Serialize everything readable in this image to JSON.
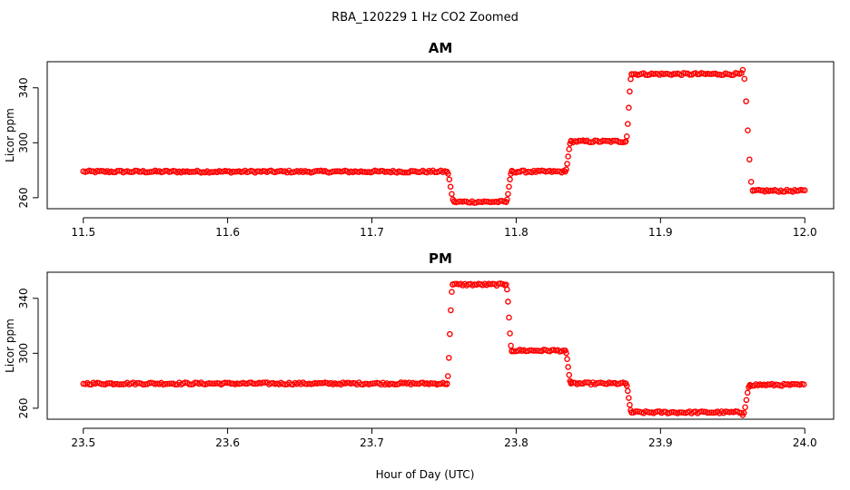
{
  "page": {
    "title": "RBA_120229  1 Hz CO2 Zoomed",
    "xlabel": "Hour of Day (UTC)"
  },
  "chart_data": [
    {
      "type": "scatter",
      "title": "AM",
      "xlabel": "Hour of Day (UTC)",
      "ylabel": "Licor ppm",
      "xlim": [
        11.475,
        12.02
      ],
      "ylim": [
        252,
        359
      ],
      "xticks": [
        11.5,
        11.6,
        11.7,
        11.8,
        11.9,
        12.0
      ],
      "xtick_labels": [
        "11.5",
        "11.6",
        "11.7",
        "11.8",
        "11.9",
        "12.0"
      ],
      "yticks": [
        260,
        300,
        340
      ],
      "ytick_labels": [
        "260",
        "300",
        "340"
      ],
      "marker_color": "#ff0000",
      "series": [
        {
          "segments": [
            {
              "x": [
                11.5,
                11.752
              ],
              "y": 279
            },
            {
              "x": [
                11.757,
                11.793
              ],
              "y": 257
            },
            {
              "x": [
                11.797,
                11.834
              ],
              "y": 279
            },
            {
              "x": [
                11.838,
                11.876
              ],
              "y": 301
            },
            {
              "x": [
                11.88,
                11.957
              ],
              "y": 350
            },
            {
              "x": [
                11.964,
                12.0
              ],
              "y": 265
            }
          ],
          "transitions": [
            {
              "x": [
                11.752,
                11.757
              ],
              "y": [
                279,
                257
              ]
            },
            {
              "x": [
                11.793,
                11.797
              ],
              "y": [
                257,
                279
              ]
            },
            {
              "x": [
                11.834,
                11.838
              ],
              "y": [
                279,
                301
              ]
            },
            {
              "x": [
                11.876,
                11.88
              ],
              "y": [
                301,
                350
              ]
            },
            {
              "x": [
                11.957,
                11.964
              ],
              "y": [
                353,
                265
              ]
            }
          ]
        }
      ]
    },
    {
      "type": "scatter",
      "title": "PM",
      "xlabel": "Hour of Day (UTC)",
      "ylabel": "Licor ppm",
      "xlim": [
        23.475,
        24.02
      ],
      "ylim": [
        252,
        359
      ],
      "xticks": [
        23.5,
        23.6,
        23.7,
        23.8,
        23.9,
        24.0
      ],
      "xtick_labels": [
        "23.5",
        "23.6",
        "23.7",
        "23.8",
        "23.9",
        "24.0"
      ],
      "yticks": [
        260,
        300,
        340
      ],
      "ytick_labels": [
        "260",
        "300",
        "340"
      ],
      "marker_color": "#ff0000",
      "series": [
        {
          "segments": [
            {
              "x": [
                23.5,
                23.752
              ],
              "y": 278
            },
            {
              "x": [
                23.756,
                23.793
              ],
              "y": 350
            },
            {
              "x": [
                23.797,
                23.834
              ],
              "y": 302
            },
            {
              "x": [
                23.838,
                23.876
              ],
              "y": 278
            },
            {
              "x": [
                23.88,
                23.957
              ],
              "y": 257
            },
            {
              "x": [
                23.962,
                24.0
              ],
              "y": 277
            }
          ],
          "transitions": [
            {
              "x": [
                23.752,
                23.756
              ],
              "y": [
                278,
                350
              ]
            },
            {
              "x": [
                23.793,
                23.797
              ],
              "y": [
                350,
                302
              ]
            },
            {
              "x": [
                23.834,
                23.838
              ],
              "y": [
                302,
                278
              ]
            },
            {
              "x": [
                23.876,
                23.88
              ],
              "y": [
                278,
                257
              ]
            },
            {
              "x": [
                23.957,
                23.962
              ],
              "y": [
                255,
                277
              ]
            }
          ]
        }
      ]
    }
  ]
}
